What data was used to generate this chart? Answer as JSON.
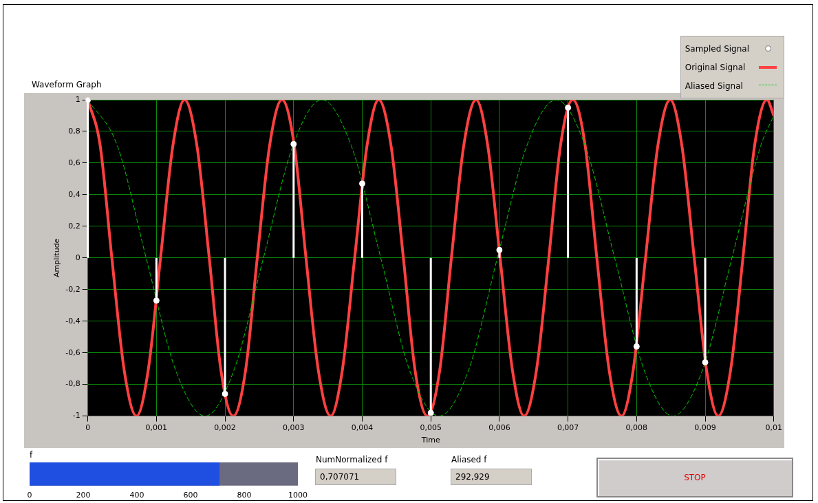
{
  "chart_data": [
    {
      "type": "line",
      "title": "Waveform Graph",
      "xlabel": "Time",
      "ylabel": "Amplitude",
      "legend": "top right",
      "grid": true,
      "xlim": [
        0,
        0.01
      ],
      "xticks": [
        0,
        {
          "value": 0.001,
          "label": "0,001"
        },
        {
          "value": 0.002,
          "label": "0,002"
        },
        {
          "value": 0.003,
          "label": "0,003"
        },
        {
          "value": 0.004,
          "label": "0,004"
        },
        {
          "value": 0.005,
          "label": "0,005"
        },
        {
          "value": 0.006,
          "label": "0,006"
        },
        {
          "value": 0.007,
          "label": "0,007"
        },
        {
          "value": 0.008,
          "label": "0,008"
        },
        {
          "value": 0.009,
          "label": "0,009"
        },
        {
          "value": 0.01,
          "label": "0,01"
        }
      ],
      "ylim": [
        -1,
        1
      ],
      "yticks": [
        -1,
        {
          "value": -0.8,
          "label": "-0,8"
        },
        {
          "value": -0.6,
          "label": "-0,6"
        },
        {
          "value": -0.4,
          "label": "-0,4"
        },
        {
          "value": -0.2,
          "label": "-0,2"
        },
        0,
        {
          "value": 0.2,
          "label": "0,2"
        },
        {
          "value": 0.4,
          "label": "0,4"
        },
        {
          "value": 0.6,
          "label": "0,6"
        },
        {
          "value": 0.8,
          "label": "0,8"
        },
        1
      ],
      "series": [
        {
          "name": "Sampled Signal",
          "type": "lollipop",
          "color": "#ffffff",
          "marker": "circle",
          "x": [
            0,
            0.001,
            0.002,
            0.003,
            0.004,
            0.005,
            0.006,
            0.007,
            0.008,
            0.009
          ],
          "values": [
            1,
            -0.27,
            -0.86,
            0.72,
            0.47,
            -0.98,
            0.05,
            0.95,
            -0.56,
            -0.66
          ]
        },
        {
          "name": "Original Signal",
          "type": "line",
          "color": "#ff4040",
          "marker": "none",
          "line_style": "solid",
          "x": [
            0,
            0.00018,
            0.00035,
            0.00053,
            0.00071,
            0.00088,
            0.00106,
            0.00124,
            0.00141,
            0.00159,
            0.00177,
            0.00194,
            0.00212,
            0.0023,
            0.00247,
            0.00265,
            0.00283,
            0.00301,
            0.00318,
            0.00336,
            0.00354,
            0.00371,
            0.00389,
            0.00407,
            0.00424,
            0.00442,
            0.0046,
            0.00477,
            0.00495,
            0.00513,
            0.0053,
            0.00548,
            0.00566,
            0.00583,
            0.00601,
            0.00619,
            0.00636,
            0.00654,
            0.00672,
            0.00689,
            0.00707,
            0.00725,
            0.00742,
            0.0076,
            0.00778,
            0.00795,
            0.00813,
            0.00831,
            0.00849,
            0.00866,
            0.00884,
            0.00902,
            0.00919,
            0.00937,
            0.00955,
            0.00972,
            0.0099,
            0.01
          ],
          "values": [
            1,
            0.71,
            0,
            -0.71,
            -1,
            -0.71,
            0,
            0.71,
            1,
            0.71,
            0,
            -0.71,
            -1,
            -0.71,
            0,
            0.71,
            1,
            0.71,
            0,
            -0.71,
            -1,
            -0.71,
            0,
            0.71,
            1,
            0.71,
            0,
            -0.71,
            -1,
            -0.71,
            0,
            0.71,
            1,
            0.71,
            0,
            -0.71,
            -1,
            -0.71,
            0,
            0.71,
            1,
            0.71,
            0,
            -0.71,
            -1,
            -0.71,
            0,
            0.71,
            1,
            0.71,
            0,
            -0.71,
            -1,
            -0.71,
            0,
            0.71,
            1,
            0.9
          ]
        },
        {
          "name": "Aliased Signal",
          "type": "line",
          "color": "#00cc00",
          "marker": "none",
          "line_style": "dashed",
          "x": [
            0,
            0.00043,
            0.00085,
            0.00128,
            0.00171,
            0.00213,
            0.00256,
            0.00299,
            0.00341,
            0.00384,
            0.00427,
            0.00469,
            0.00512,
            0.00555,
            0.00597,
            0.0064,
            0.00683,
            0.00725,
            0.00768,
            0.00811,
            0.00853,
            0.00896,
            0.00939,
            0.00981,
            0.01
          ],
          "values": [
            1,
            0.71,
            0,
            -0.71,
            -1,
            -0.71,
            0,
            0.71,
            1,
            0.71,
            0,
            -0.71,
            -1,
            -0.71,
            0,
            0.71,
            1,
            0.71,
            0,
            -0.71,
            -1,
            -0.71,
            0,
            0.71,
            0.9
          ]
        }
      ]
    },
    {
      "type": "bar",
      "orientation": "horizontal",
      "title": "f",
      "categories": [
        null
      ],
      "values": [
        707
      ],
      "color": "#1f4fe0",
      "xlim": [
        0,
        1000
      ],
      "xticks": [
        0,
        200,
        400,
        600,
        800,
        1000
      ]
    },
    {
      "type": "other",
      "annotations": [
        "NumNormalized f",
        "0,707071",
        "Aliased f",
        "292,929",
        "STOP"
      ]
    }
  ]
}
